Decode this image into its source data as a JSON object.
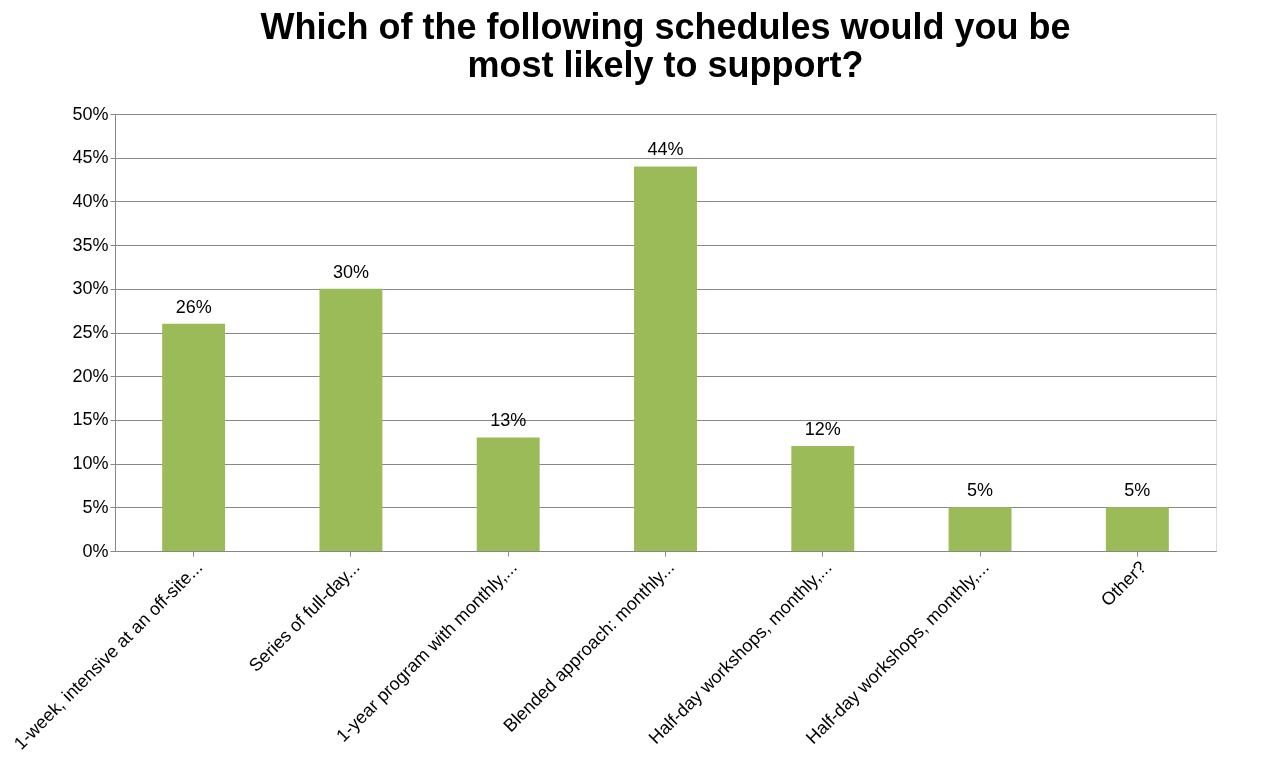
{
  "chart_data": {
    "type": "bar",
    "title": "Which of the following schedules would you be most likely to support?",
    "categories": [
      "1-week, intensive at an off-site...",
      "Series of full-day...",
      "1-year program with monthly,...",
      "Blended approach: monthly...",
      "Half-day workshops, monthly,...",
      "Half-day workshops, monthly,...",
      "Other?"
    ],
    "values": [
      26,
      30,
      13,
      44,
      12,
      5,
      5
    ],
    "value_labels": [
      "26%",
      "30%",
      "13%",
      "44%",
      "12%",
      "5%",
      "5%"
    ],
    "color": "#9bbb59",
    "ylim": [
      0,
      50
    ],
    "yticks": [
      {
        "value": 0,
        "label": "0%"
      },
      {
        "value": 5,
        "label": "5%"
      },
      {
        "value": 10,
        "label": "10%"
      },
      {
        "value": 15,
        "label": "15%"
      },
      {
        "value": 20,
        "label": "20%"
      },
      {
        "value": 25,
        "label": "25%"
      },
      {
        "value": 30,
        "label": "30%"
      },
      {
        "value": 35,
        "label": "35%"
      },
      {
        "value": 40,
        "label": "40%"
      },
      {
        "value": 45,
        "label": "45%"
      },
      {
        "value": 50,
        "label": "50%"
      }
    ],
    "grid": "y"
  }
}
